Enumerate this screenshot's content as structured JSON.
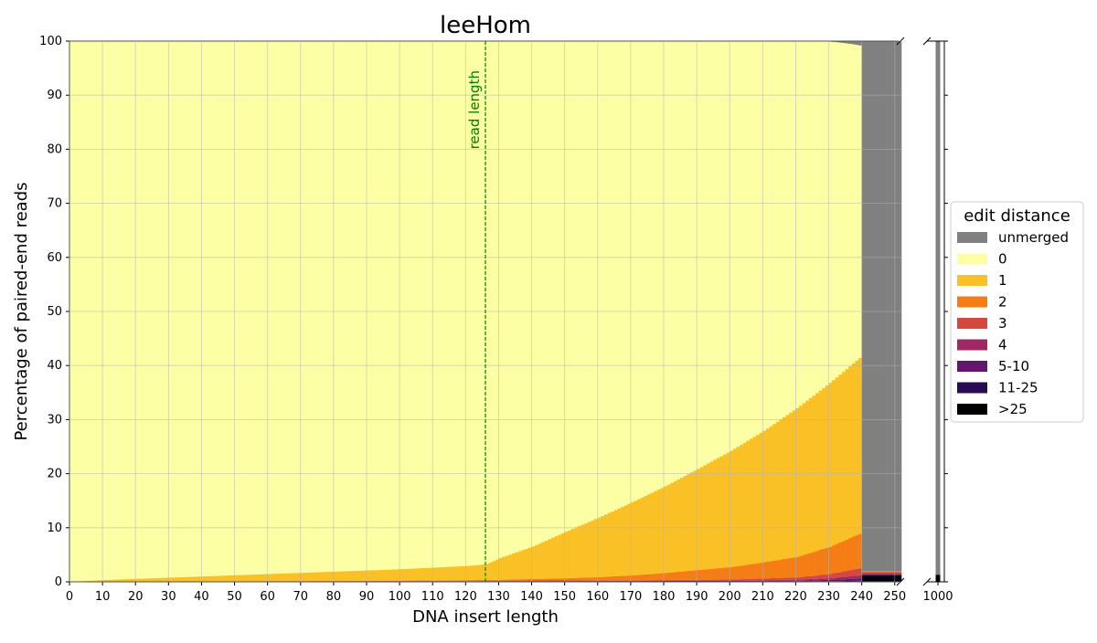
{
  "chart_data": {
    "type": "bar",
    "stacked": true,
    "title": "leeHom",
    "xlabel": "DNA insert length",
    "ylabel": "Percentage of paired-end reads",
    "xlim": [
      0,
      252
    ],
    "ylim": [
      0,
      100
    ],
    "x_ticks": [
      0,
      10,
      20,
      30,
      40,
      50,
      60,
      70,
      80,
      90,
      100,
      110,
      120,
      130,
      140,
      150,
      160,
      170,
      180,
      190,
      200,
      210,
      220,
      230,
      240,
      250
    ],
    "y_ticks": [
      0,
      10,
      20,
      30,
      40,
      50,
      60,
      70,
      80,
      90,
      100
    ],
    "broken_axis": {
      "extra_tick": 1000
    },
    "grid": true,
    "read_length": {
      "x": 126,
      "label": "read length",
      "color": "#008000"
    },
    "legend": {
      "title": "edit distance",
      "placement": "right",
      "entries": [
        {
          "label": "unmerged",
          "color": "#808080"
        },
        {
          "label": "0",
          "color": "#fcffa4"
        },
        {
          "label": "1",
          "color": "#fac127"
        },
        {
          "label": "2",
          "color": "#f57d15"
        },
        {
          "label": "3",
          "color": "#d44842"
        },
        {
          "label": "4",
          "color": "#9f2a63"
        },
        {
          "label": "5-10",
          "color": "#65156e"
        },
        {
          "label": "11-25",
          "color": "#280b53"
        },
        {
          "label": ">25",
          "color": "#000004"
        }
      ]
    },
    "series": [
      {
        "name": "1",
        "color": "#fac127",
        "points": [
          [
            0,
            0
          ],
          [
            10,
            0.3
          ],
          [
            20,
            0.5
          ],
          [
            40,
            0.9
          ],
          [
            60,
            1.3
          ],
          [
            80,
            1.7
          ],
          [
            100,
            2.1
          ],
          [
            120,
            2.6
          ],
          [
            126,
            2.9
          ],
          [
            130,
            4
          ],
          [
            140,
            6
          ],
          [
            150,
            8.6
          ],
          [
            160,
            11
          ],
          [
            170,
            13.5
          ],
          [
            180,
            16
          ],
          [
            190,
            18.7
          ],
          [
            200,
            21.5
          ],
          [
            210,
            24.3
          ],
          [
            220,
            27.5
          ],
          [
            230,
            30.3
          ],
          [
            239,
            32.5
          ]
        ]
      },
      {
        "name": "2",
        "color": "#f57d15",
        "points": [
          [
            0,
            0
          ],
          [
            100,
            0.05
          ],
          [
            130,
            0.15
          ],
          [
            150,
            0.4
          ],
          [
            160,
            0.6
          ],
          [
            170,
            0.9
          ],
          [
            180,
            1.3
          ],
          [
            190,
            1.8
          ],
          [
            200,
            2.3
          ],
          [
            210,
            3
          ],
          [
            220,
            3.8
          ],
          [
            230,
            5
          ],
          [
            239,
            6.4
          ]
        ]
      },
      {
        "name": "3",
        "color": "#d44842",
        "points": [
          [
            0,
            0
          ],
          [
            170,
            0.1
          ],
          [
            200,
            0.2
          ],
          [
            220,
            0.4
          ],
          [
            230,
            0.8
          ],
          [
            239,
            1.3
          ]
        ]
      },
      {
        "name": "4",
        "color": "#9f2a63",
        "points": [
          [
            0,
            0
          ],
          [
            200,
            0.05
          ],
          [
            230,
            0.3
          ],
          [
            239,
            0.6
          ]
        ]
      },
      {
        "name": "5-10",
        "color": "#65156e",
        "points": [
          [
            0,
            0
          ],
          [
            220,
            0.1
          ],
          [
            239,
            0.4
          ]
        ]
      },
      {
        "name": "11-25",
        "color": "#280b53",
        "points": [
          [
            0,
            0
          ],
          [
            225,
            0.05
          ],
          [
            239,
            0.1
          ]
        ]
      },
      {
        "name": ">25",
        "color": "#000004",
        "points": [
          [
            0,
            0
          ],
          [
            230,
            0.05
          ],
          [
            239,
            0.1
          ]
        ]
      },
      {
        "name": "unmerged",
        "color": "#808080",
        "points": [
          [
            0,
            0
          ],
          [
            228,
            0
          ],
          [
            232,
            0.2
          ],
          [
            236,
            0.5
          ],
          [
            239,
            0.8
          ],
          [
            240,
            100
          ],
          [
            250,
            100
          ]
        ]
      }
    ],
    "tail_250": {
      "2": 0.2,
      "3": 0.2,
      "4": 0.2,
      "5-10": 0.2,
      "11-25": 0.1,
      ">25": 1.1,
      "unmerged": 98
    },
    "bin_1000": {
      ">25": 1.3,
      "unmerged": 98.7
    }
  }
}
